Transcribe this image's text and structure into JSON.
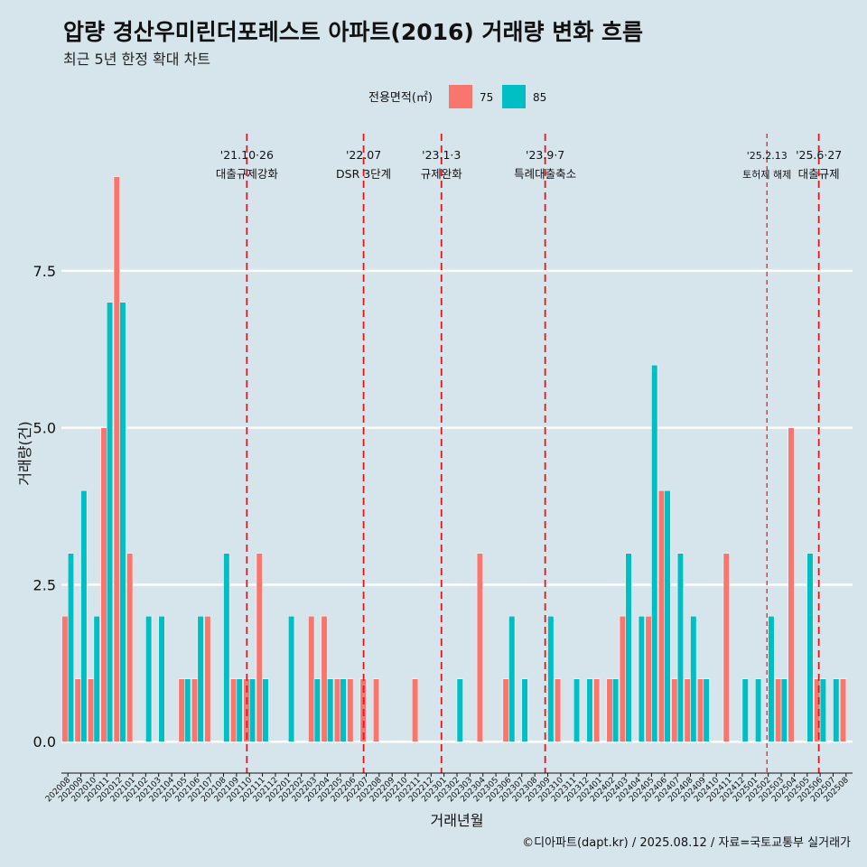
{
  "title": "압량 경산우미린더포레스트 아파트(2016) 거래량 변화 흐름",
  "subtitle": "최근 5년 한정 확대 차트",
  "caption": "©디아파트(dapt.kr) / 2025.08.12 / 자료=국토교통부 실거래가",
  "colors": {
    "s75": "#f8766d",
    "s85": "#00bfc4",
    "event": "#e8141c",
    "background": "#d6e4eb"
  },
  "chart_data": {
    "type": "bar",
    "title": "압량 경산우미린더포레스트 아파트(2016) 거래량 변화 흐름",
    "xlabel": "거래년월",
    "ylabel": "거래량(건)",
    "ylim": [
      -0.5,
      9.8
    ],
    "yticks": [
      0,
      2.5,
      5,
      7.5
    ],
    "ytick_labels": [
      "0.0",
      "2.5",
      "5.0",
      "7.5"
    ],
    "legend_title": "전용면적(㎡)",
    "categories": [
      "202008",
      "202009",
      "202010",
      "202011",
      "202012",
      "202101",
      "202102",
      "202103",
      "202104",
      "202105",
      "202106",
      "202107",
      "202108",
      "202109",
      "202110",
      "202111",
      "202112",
      "202201",
      "202202",
      "202203",
      "202204",
      "202205",
      "202206",
      "202207",
      "202208",
      "202209",
      "202210",
      "202211",
      "202212",
      "202301",
      "202302",
      "202303",
      "202304",
      "202305",
      "202306",
      "202307",
      "202308",
      "202309",
      "202310",
      "202311",
      "202312",
      "202401",
      "202402",
      "202403",
      "202404",
      "202405",
      "202406",
      "202407",
      "202408",
      "202409",
      "202410",
      "202411",
      "202412",
      "202501",
      "202502",
      "202503",
      "202504",
      "202505",
      "202506",
      "202507",
      "202508"
    ],
    "series": [
      {
        "name": "75",
        "values": [
          2,
          1,
          1,
          5,
          9,
          3,
          0,
          0,
          0,
          1,
          1,
          2,
          0,
          1,
          1,
          3,
          0,
          0,
          0,
          2,
          2,
          1,
          1,
          1,
          1,
          0,
          0,
          1,
          0,
          0,
          0,
          0,
          3,
          0,
          1,
          0,
          0,
          0,
          1,
          0,
          0,
          1,
          1,
          2,
          0,
          2,
          4,
          1,
          1,
          1,
          0,
          3,
          0,
          0,
          0,
          1,
          5,
          0,
          1,
          0,
          1
        ]
      },
      {
        "name": "85",
        "values": [
          3,
          4,
          2,
          7,
          7,
          0,
          2,
          2,
          0,
          1,
          2,
          0,
          3,
          1,
          1,
          1,
          0,
          2,
          0,
          1,
          1,
          1,
          0,
          0,
          0,
          0,
          0,
          0,
          0,
          0,
          1,
          0,
          0,
          0,
          2,
          1,
          0,
          2,
          0,
          1,
          1,
          0,
          1,
          3,
          2,
          6,
          4,
          3,
          2,
          1,
          0,
          0,
          1,
          1,
          2,
          1,
          0,
          3,
          1,
          1,
          0
        ]
      }
    ],
    "events": [
      {
        "index": 14.3,
        "date": "'21.10·26",
        "label": "대출규제강화",
        "dash": "long"
      },
      {
        "index": 23.3,
        "date": "'22.07",
        "label": "DSR 3단계",
        "dash": "long"
      },
      {
        "index": 29.3,
        "date": "'23.1·3",
        "label": "규제완화",
        "dash": "long"
      },
      {
        "index": 37.3,
        "date": "'23.9·7",
        "label": "특례대출축소",
        "dash": "long"
      },
      {
        "index": 54.4,
        "date": "'25.2.13",
        "label": "토허제 해제",
        "dash": "short"
      },
      {
        "index": 58.4,
        "date": "'25.6·27",
        "label": "대출규제",
        "dash": "long"
      }
    ]
  }
}
